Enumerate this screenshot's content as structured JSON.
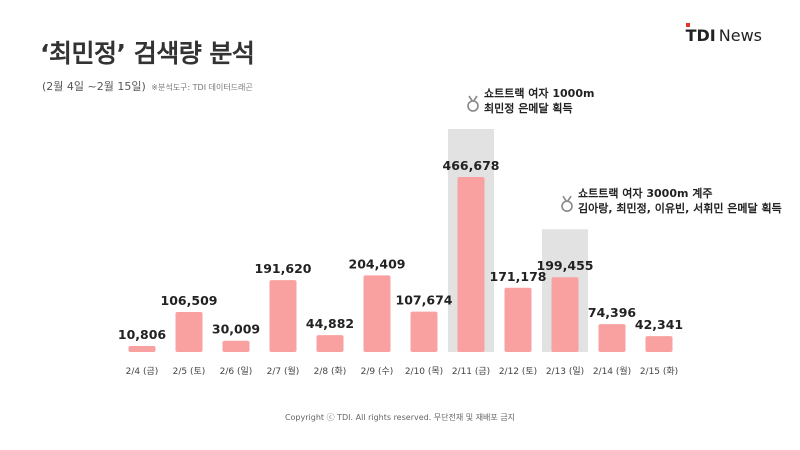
{
  "title": "‘최민정’ 검색량 분석",
  "subtitle": "(2월 4일 ~2월 15일)",
  "source_note": "※분석도구: TDI 데이터드래곤",
  "logo": {
    "brand": "TDI",
    "suffix": "News"
  },
  "footer": "Copyright ⓒ TDI. All rights reserved. 무단전재 및 재배포 금지",
  "colors": {
    "bar": "#f9a0a0",
    "highlight": "#e2e2e2",
    "brand_dot": "#e5322d"
  },
  "chart_data": {
    "type": "bar",
    "title": "‘최민정’ 검색량 분석",
    "categories": [
      "2/4 (금)",
      "2/5 (토)",
      "2/6 (일)",
      "2/7 (월)",
      "2/8 (화)",
      "2/9 (수)",
      "2/10 (목)",
      "2/11 (금)",
      "2/12 (토)",
      "2/13 (일)",
      "2/14 (월)",
      "2/15 (화)"
    ],
    "values": [
      10806,
      106509,
      30009,
      191620,
      44882,
      204409,
      107674,
      466678,
      171178,
      199455,
      74396,
      42341
    ],
    "value_labels": [
      "10,806",
      "106,509",
      "30,009",
      "191,620",
      "44,882",
      "204,409",
      "107,674",
      "466,678",
      "171,178",
      "199,455",
      "74,396",
      "42,341"
    ],
    "ylim": [
      0,
      500000
    ],
    "grid": false,
    "annotations": [
      {
        "category_index": 7,
        "icon": "medal-icon",
        "lines": [
          "쇼트트랙 여자 1000m",
          "최민정 은메달 획득"
        ]
      },
      {
        "category_index": 9,
        "icon": "medal-icon",
        "lines": [
          "쇼트트랙 여자 3000m 계주",
          "김아랑, 최민정, 이유빈, 서휘민 은메달 획득"
        ]
      }
    ]
  }
}
